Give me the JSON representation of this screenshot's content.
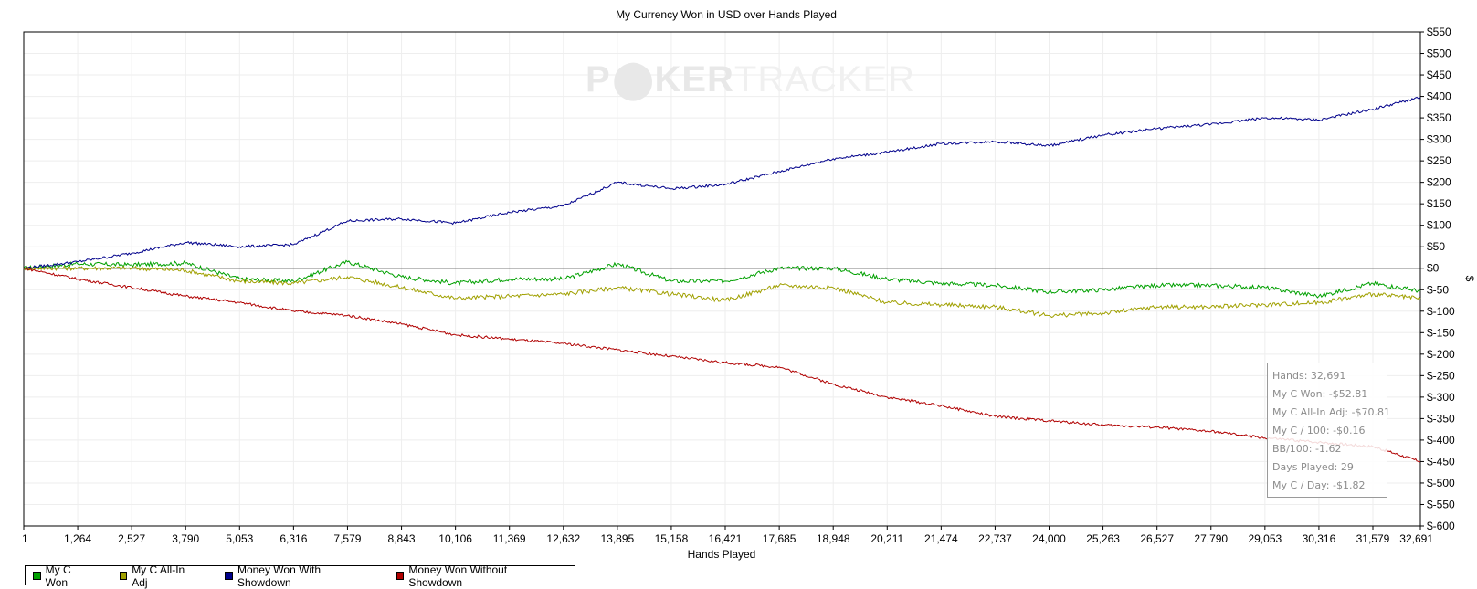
{
  "chart_data": {
    "type": "line",
    "title": "My Currency Won in USD over Hands Played",
    "xlabel": "Hands Played",
    "ylabel": "$",
    "watermark": {
      "left": "P",
      "right": "KER",
      "faded": "TRACKER"
    },
    "xlim": [
      1,
      32691
    ],
    "ylim": [
      -600,
      550
    ],
    "x_ticks": [
      1,
      1264,
      2527,
      3790,
      5053,
      6316,
      7579,
      8843,
      10106,
      11369,
      12632,
      13895,
      15158,
      16421,
      17685,
      18948,
      20211,
      21474,
      22737,
      24000,
      25263,
      26527,
      27790,
      29053,
      30316,
      31579,
      32691
    ],
    "x_tick_labels": [
      "1",
      "1,264",
      "2,527",
      "3,790",
      "5,053",
      "6,316",
      "7,579",
      "8,843",
      "10,106",
      "11,369",
      "12,632",
      "13,895",
      "15,158",
      "16,421",
      "17,685",
      "18,948",
      "20,211",
      "21,474",
      "22,737",
      "24,000",
      "25,263",
      "26,527",
      "27,790",
      "29,053",
      "30,316",
      "31,579",
      "32,691"
    ],
    "y_ticks": [
      550,
      500,
      450,
      400,
      350,
      300,
      250,
      200,
      150,
      100,
      50,
      0,
      -50,
      -100,
      -150,
      -200,
      -250,
      -300,
      -350,
      -400,
      -450,
      -500,
      -550,
      -600
    ],
    "y_tick_labels": [
      "$550",
      "$500",
      "$450",
      "$400",
      "$350",
      "$300",
      "$250",
      "$200",
      "$150",
      "$100",
      "$50",
      "$0",
      "$-50",
      "$-100",
      "$-150",
      "$-200",
      "$-250",
      "$-300",
      "$-350",
      "$-400",
      "$-450",
      "$-500",
      "$-550",
      "$-600"
    ],
    "grid": true,
    "legend_position": "bottom-left",
    "x": [
      1,
      1264,
      2527,
      3790,
      5053,
      6316,
      7579,
      8843,
      10106,
      11369,
      12632,
      13895,
      15158,
      16421,
      17685,
      18948,
      20211,
      21474,
      22737,
      24000,
      25263,
      26527,
      27790,
      29053,
      30316,
      31579,
      32691
    ],
    "series": [
      {
        "name": "My C Won",
        "color": "#00a000",
        "values": [
          0,
          10,
          8,
          12,
          -25,
          -30,
          15,
          -20,
          -35,
          -25,
          -25,
          10,
          -30,
          -30,
          0,
          0,
          -25,
          -35,
          -40,
          -55,
          -50,
          -40,
          -40,
          -45,
          -65,
          -35,
          -53
        ]
      },
      {
        "name": "My C All-In Adj",
        "color": "#a0a000",
        "values": [
          0,
          0,
          0,
          -5,
          -30,
          -35,
          -20,
          -45,
          -70,
          -65,
          -60,
          -45,
          -60,
          -75,
          -40,
          -45,
          -80,
          -85,
          -90,
          -110,
          -105,
          -90,
          -90,
          -85,
          -80,
          -60,
          -71
        ]
      },
      {
        "name": "Money Won With Showdown",
        "color": "#00008b",
        "values": [
          0,
          15,
          35,
          60,
          50,
          55,
          110,
          115,
          105,
          130,
          145,
          200,
          185,
          195,
          225,
          255,
          270,
          290,
          295,
          285,
          310,
          325,
          335,
          350,
          345,
          370,
          398
        ]
      },
      {
        "name": "Money Won Without Showdown",
        "color": "#b00000",
        "values": [
          0,
          -25,
          -45,
          -65,
          -80,
          -100,
          -110,
          -130,
          -155,
          -165,
          -175,
          -190,
          -205,
          -220,
          -230,
          -270,
          -300,
          -320,
          -345,
          -355,
          -365,
          -370,
          -380,
          -395,
          -405,
          -415,
          -450
        ]
      }
    ]
  },
  "stats": {
    "hands": "Hands: 32,691",
    "won": "My C Won: -$52.81",
    "allin_adj": "My C All-In Adj: -$70.81",
    "per100": "My C / 100: -$0.16",
    "bb100": "BB/100: -1.62",
    "days": "Days Played: 29",
    "per_day": "My C / Day: -$1.82"
  }
}
